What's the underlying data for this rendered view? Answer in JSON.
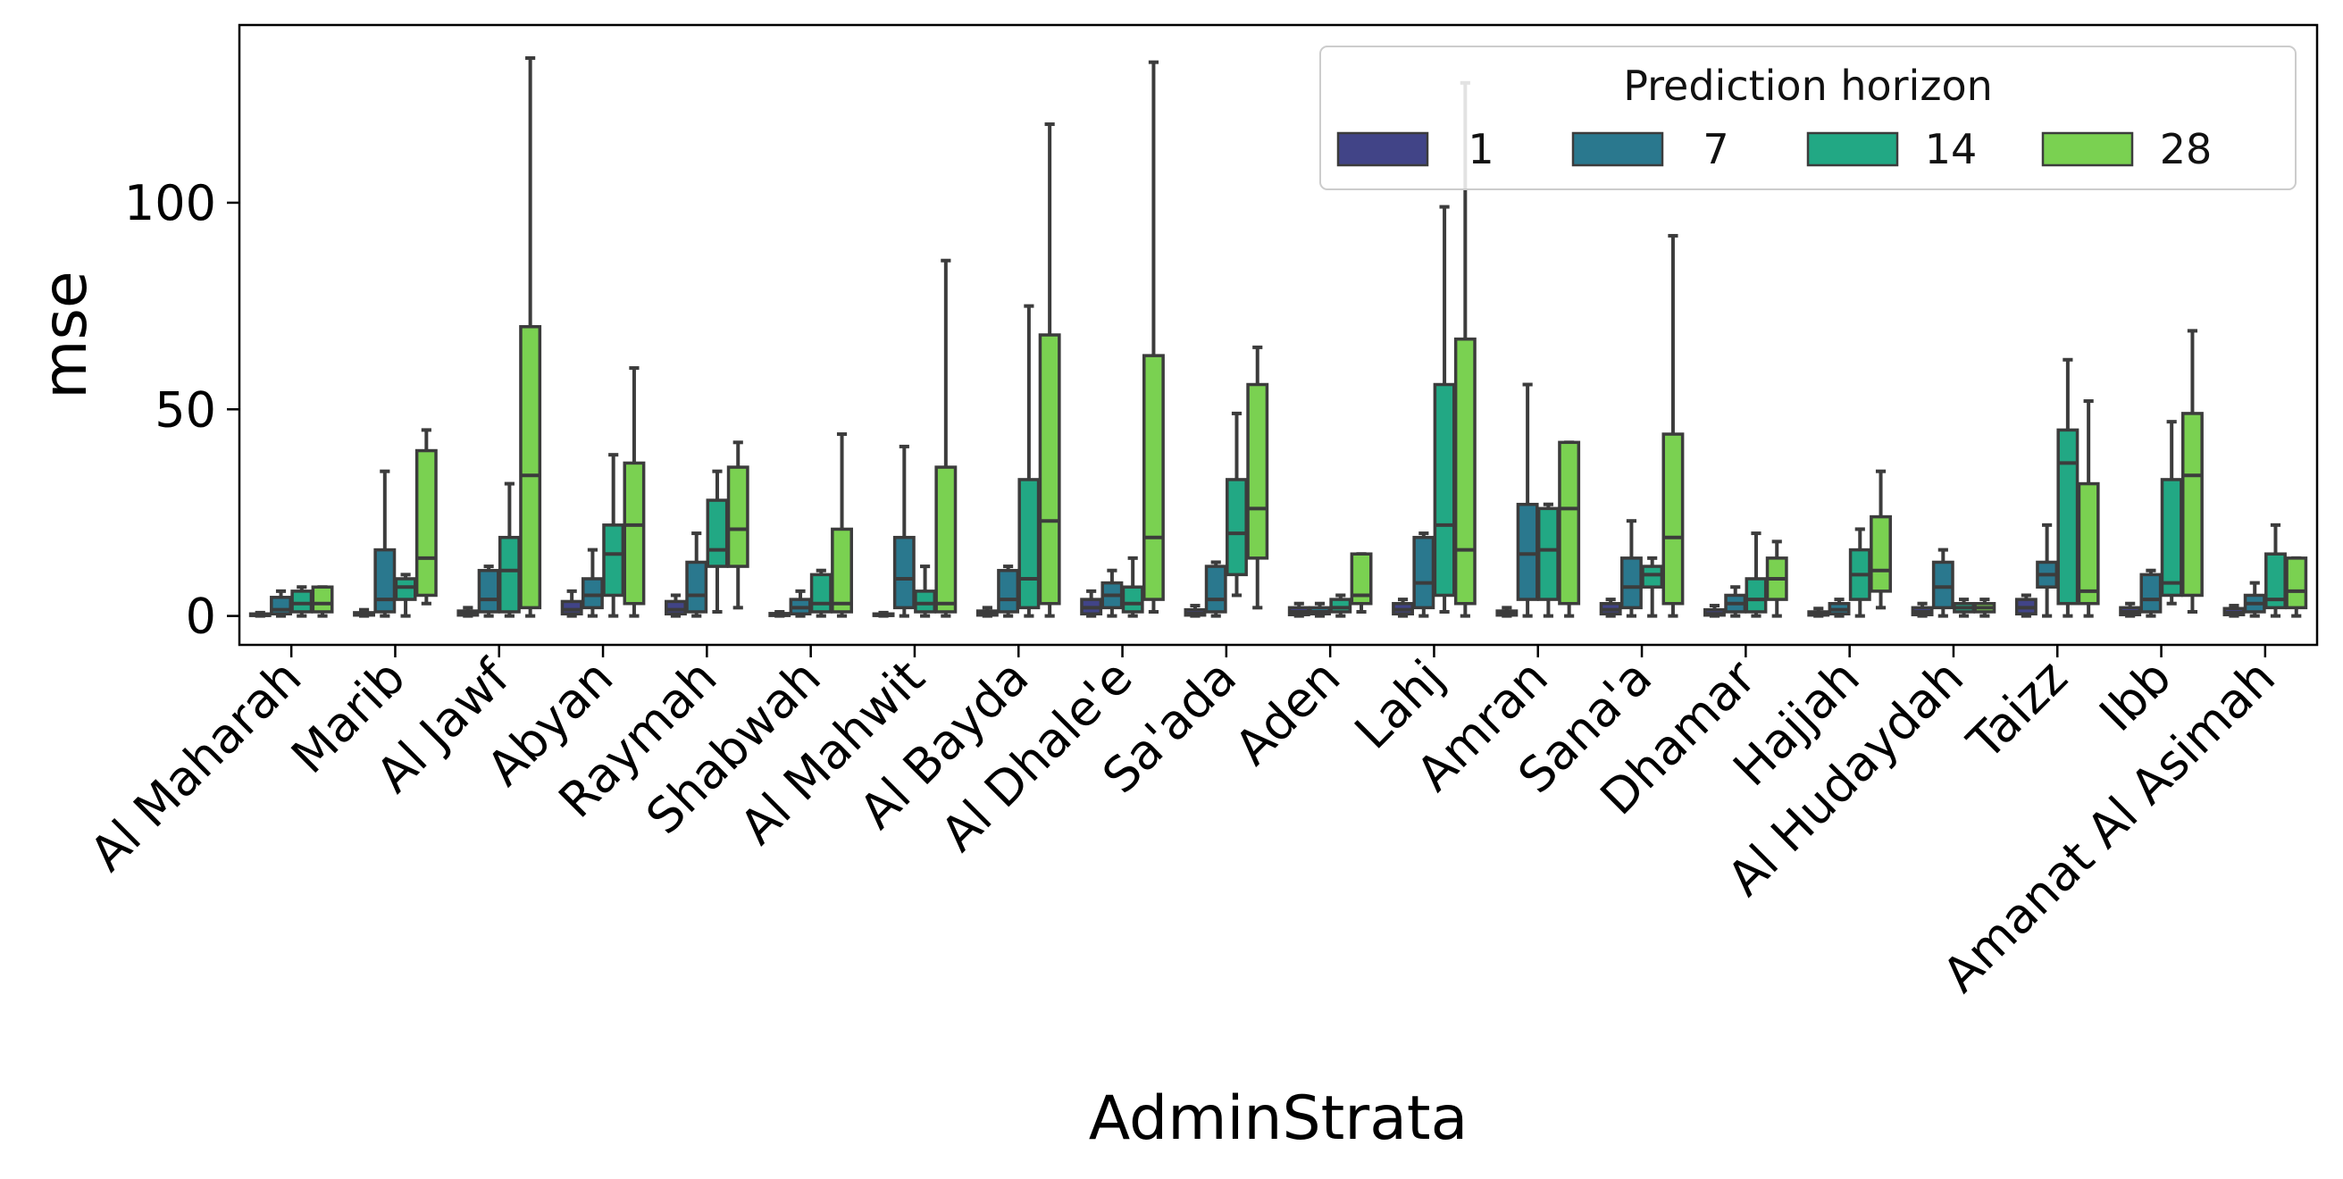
{
  "chart_data": {
    "type": "box",
    "xlabel": "AdminStrata",
    "ylabel": "mse",
    "ylim": [
      -7,
      143
    ],
    "yticks": [
      0,
      50,
      100
    ],
    "legend": {
      "title": "Prediction horizon",
      "placement": "top-right",
      "entries": [
        "1",
        "7",
        "14",
        "28"
      ]
    },
    "colors": {
      "1": "#414487",
      "7": "#2a788e",
      "14": "#22a884",
      "28": "#7ad151"
    },
    "categories": [
      "Al Maharah",
      "Marib",
      "Al Jawf",
      "Abyan",
      "Raymah",
      "Shabwah",
      "Al Mahwit",
      "Al Bayda",
      "Al Dhale'e",
      "Sa'ada",
      "Aden",
      "Lahj",
      "Amran",
      "Sana'a",
      "Dhamar",
      "Hajjah",
      "Al Hudaydah",
      "Taizz",
      "Ibb",
      "Amanat Al Asimah"
    ],
    "series": [
      {
        "name": "1",
        "boxes": [
          {
            "wl": 0,
            "q1": 0.1,
            "med": 0.2,
            "q3": 0.5,
            "wh": 0.8
          },
          {
            "wl": 0,
            "q1": 0.2,
            "med": 0.4,
            "q3": 0.8,
            "wh": 1.5
          },
          {
            "wl": 0,
            "q1": 0.2,
            "med": 0.5,
            "q3": 1.2,
            "wh": 2
          },
          {
            "wl": 0,
            "q1": 0.5,
            "med": 1.5,
            "q3": 3.5,
            "wh": 6
          },
          {
            "wl": 0,
            "q1": 0.5,
            "med": 1.5,
            "q3": 3.5,
            "wh": 5
          },
          {
            "wl": 0,
            "q1": 0.1,
            "med": 0.3,
            "q3": 0.6,
            "wh": 1
          },
          {
            "wl": 0,
            "q1": 0.1,
            "med": 0.2,
            "q3": 0.5,
            "wh": 0.8
          },
          {
            "wl": 0,
            "q1": 0.2,
            "med": 0.5,
            "q3": 1.2,
            "wh": 2
          },
          {
            "wl": 0,
            "q1": 0.5,
            "med": 2,
            "q3": 4,
            "wh": 6
          },
          {
            "wl": 0,
            "q1": 0.2,
            "med": 0.6,
            "q3": 1.5,
            "wh": 2.5
          },
          {
            "wl": 0,
            "q1": 0.3,
            "med": 1,
            "q3": 2,
            "wh": 3
          },
          {
            "wl": 0,
            "q1": 0.5,
            "med": 1.5,
            "q3": 3,
            "wh": 4
          },
          {
            "wl": 0,
            "q1": 0.2,
            "med": 0.5,
            "q3": 1.2,
            "wh": 2
          },
          {
            "wl": 0,
            "q1": 0.5,
            "med": 1.5,
            "q3": 3,
            "wh": 4
          },
          {
            "wl": 0,
            "q1": 0.2,
            "med": 0.5,
            "q3": 1.5,
            "wh": 2.5
          },
          {
            "wl": 0,
            "q1": 0.2,
            "med": 0.5,
            "q3": 1,
            "wh": 1.8
          },
          {
            "wl": 0,
            "q1": 0.3,
            "med": 1,
            "q3": 2,
            "wh": 3
          },
          {
            "wl": 0,
            "q1": 0.5,
            "med": 2,
            "q3": 4,
            "wh": 5
          },
          {
            "wl": 0,
            "q1": 0.3,
            "med": 1,
            "q3": 2,
            "wh": 3
          },
          {
            "wl": 0,
            "q1": 0.3,
            "med": 0.8,
            "q3": 1.8,
            "wh": 2.5
          }
        ]
      },
      {
        "name": "7",
        "boxes": [
          {
            "wl": 0,
            "q1": 0.5,
            "med": 1.5,
            "q3": 4.5,
            "wh": 6
          },
          {
            "wl": 0,
            "q1": 1,
            "med": 4,
            "q3": 16,
            "wh": 35
          },
          {
            "wl": 0,
            "q1": 1,
            "med": 4,
            "q3": 11,
            "wh": 12
          },
          {
            "wl": 0,
            "q1": 2,
            "med": 5,
            "q3": 9,
            "wh": 16
          },
          {
            "wl": 0,
            "q1": 1,
            "med": 5,
            "q3": 13,
            "wh": 20
          },
          {
            "wl": 0,
            "q1": 0.5,
            "med": 2,
            "q3": 4,
            "wh": 6
          },
          {
            "wl": 0,
            "q1": 2,
            "med": 9,
            "q3": 19,
            "wh": 41
          },
          {
            "wl": 0,
            "q1": 1,
            "med": 4,
            "q3": 11,
            "wh": 12
          },
          {
            "wl": 0,
            "q1": 2,
            "med": 5,
            "q3": 8,
            "wh": 11
          },
          {
            "wl": 0,
            "q1": 1,
            "med": 4,
            "q3": 12,
            "wh": 13
          },
          {
            "wl": 0,
            "q1": 0.5,
            "med": 1,
            "q3": 2,
            "wh": 3
          },
          {
            "wl": 0,
            "q1": 2,
            "med": 8,
            "q3": 19,
            "wh": 20
          },
          {
            "wl": 0,
            "q1": 4,
            "med": 15,
            "q3": 27,
            "wh": 56
          },
          {
            "wl": 0,
            "q1": 2,
            "med": 7,
            "q3": 14,
            "wh": 23
          },
          {
            "wl": 0,
            "q1": 1,
            "med": 3,
            "q3": 5,
            "wh": 7
          },
          {
            "wl": 0,
            "q1": 0.5,
            "med": 1.5,
            "q3": 3,
            "wh": 4
          },
          {
            "wl": 0,
            "q1": 2,
            "med": 7,
            "q3": 13,
            "wh": 16
          },
          {
            "wl": 0,
            "q1": 7,
            "med": 10,
            "q3": 13,
            "wh": 22
          },
          {
            "wl": 0,
            "q1": 1,
            "med": 4,
            "q3": 10,
            "wh": 11
          },
          {
            "wl": 0,
            "q1": 1,
            "med": 3,
            "q3": 5,
            "wh": 8
          }
        ]
      },
      {
        "name": "14",
        "boxes": [
          {
            "wl": 0,
            "q1": 1,
            "med": 3,
            "q3": 6,
            "wh": 7
          },
          {
            "wl": 0,
            "q1": 4,
            "med": 7,
            "q3": 9,
            "wh": 10
          },
          {
            "wl": 0,
            "q1": 1,
            "med": 11,
            "q3": 19,
            "wh": 32
          },
          {
            "wl": 0,
            "q1": 5,
            "med": 15,
            "q3": 22,
            "wh": 39
          },
          {
            "wl": 1,
            "q1": 12,
            "med": 16,
            "q3": 28,
            "wh": 35
          },
          {
            "wl": 0,
            "q1": 1,
            "med": 3,
            "q3": 10,
            "wh": 11
          },
          {
            "wl": 0,
            "q1": 1,
            "med": 3,
            "q3": 6,
            "wh": 12
          },
          {
            "wl": 0,
            "q1": 2,
            "med": 9,
            "q3": 33,
            "wh": 75
          },
          {
            "wl": 0,
            "q1": 1,
            "med": 3,
            "q3": 7,
            "wh": 14
          },
          {
            "wl": 5,
            "q1": 10,
            "med": 20,
            "q3": 33,
            "wh": 49
          },
          {
            "wl": 0,
            "q1": 1,
            "med": 2,
            "q3": 4,
            "wh": 5
          },
          {
            "wl": 1,
            "q1": 5,
            "med": 22,
            "q3": 56,
            "wh": 99
          },
          {
            "wl": 0,
            "q1": 4,
            "med": 16,
            "q3": 26,
            "wh": 27
          },
          {
            "wl": 0,
            "q1": 7,
            "med": 10,
            "q3": 12,
            "wh": 14
          },
          {
            "wl": 0,
            "q1": 1,
            "med": 4,
            "q3": 9,
            "wh": 20
          },
          {
            "wl": 0,
            "q1": 4,
            "med": 10,
            "q3": 16,
            "wh": 21
          },
          {
            "wl": 0,
            "q1": 1,
            "med": 2,
            "q3": 3,
            "wh": 4
          },
          {
            "wl": 0,
            "q1": 3,
            "med": 37,
            "q3": 45,
            "wh": 62
          },
          {
            "wl": 3,
            "q1": 5,
            "med": 8,
            "q3": 33,
            "wh": 47
          },
          {
            "wl": 0,
            "q1": 2,
            "med": 4,
            "q3": 15,
            "wh": 22
          }
        ]
      },
      {
        "name": "28",
        "boxes": [
          {
            "wl": 0,
            "q1": 1,
            "med": 3,
            "q3": 7,
            "wh": 7
          },
          {
            "wl": 3,
            "q1": 5,
            "med": 14,
            "q3": 40,
            "wh": 45
          },
          {
            "wl": 0,
            "q1": 2,
            "med": 34,
            "q3": 70,
            "wh": 135
          },
          {
            "wl": 0,
            "q1": 3,
            "med": 22,
            "q3": 37,
            "wh": 60
          },
          {
            "wl": 2,
            "q1": 12,
            "med": 21,
            "q3": 36,
            "wh": 42
          },
          {
            "wl": 0,
            "q1": 1,
            "med": 3,
            "q3": 21,
            "wh": 44
          },
          {
            "wl": 0,
            "q1": 1,
            "med": 3,
            "q3": 36,
            "wh": 86
          },
          {
            "wl": 0,
            "q1": 3,
            "med": 23,
            "q3": 68,
            "wh": 119
          },
          {
            "wl": 1,
            "q1": 4,
            "med": 19,
            "q3": 63,
            "wh": 134
          },
          {
            "wl": 2,
            "q1": 14,
            "med": 26,
            "q3": 56,
            "wh": 65
          },
          {
            "wl": 1,
            "q1": 3,
            "med": 5,
            "q3": 15,
            "wh": 15
          },
          {
            "wl": 0,
            "q1": 3,
            "med": 16,
            "q3": 67,
            "wh": 129
          },
          {
            "wl": 0,
            "q1": 3,
            "med": 26,
            "q3": 42,
            "wh": 42
          },
          {
            "wl": 0,
            "q1": 3,
            "med": 19,
            "q3": 44,
            "wh": 92
          },
          {
            "wl": 0,
            "q1": 4,
            "med": 9,
            "q3": 14,
            "wh": 18
          },
          {
            "wl": 2,
            "q1": 6,
            "med": 11,
            "q3": 24,
            "wh": 35
          },
          {
            "wl": 0,
            "q1": 1,
            "med": 2,
            "q3": 3,
            "wh": 4
          },
          {
            "wl": 0,
            "q1": 3,
            "med": 6,
            "q3": 32,
            "wh": 52
          },
          {
            "wl": 1,
            "q1": 5,
            "med": 34,
            "q3": 49,
            "wh": 69
          },
          {
            "wl": 0,
            "q1": 2,
            "med": 6,
            "q3": 14,
            "wh": 14
          }
        ]
      }
    ]
  }
}
